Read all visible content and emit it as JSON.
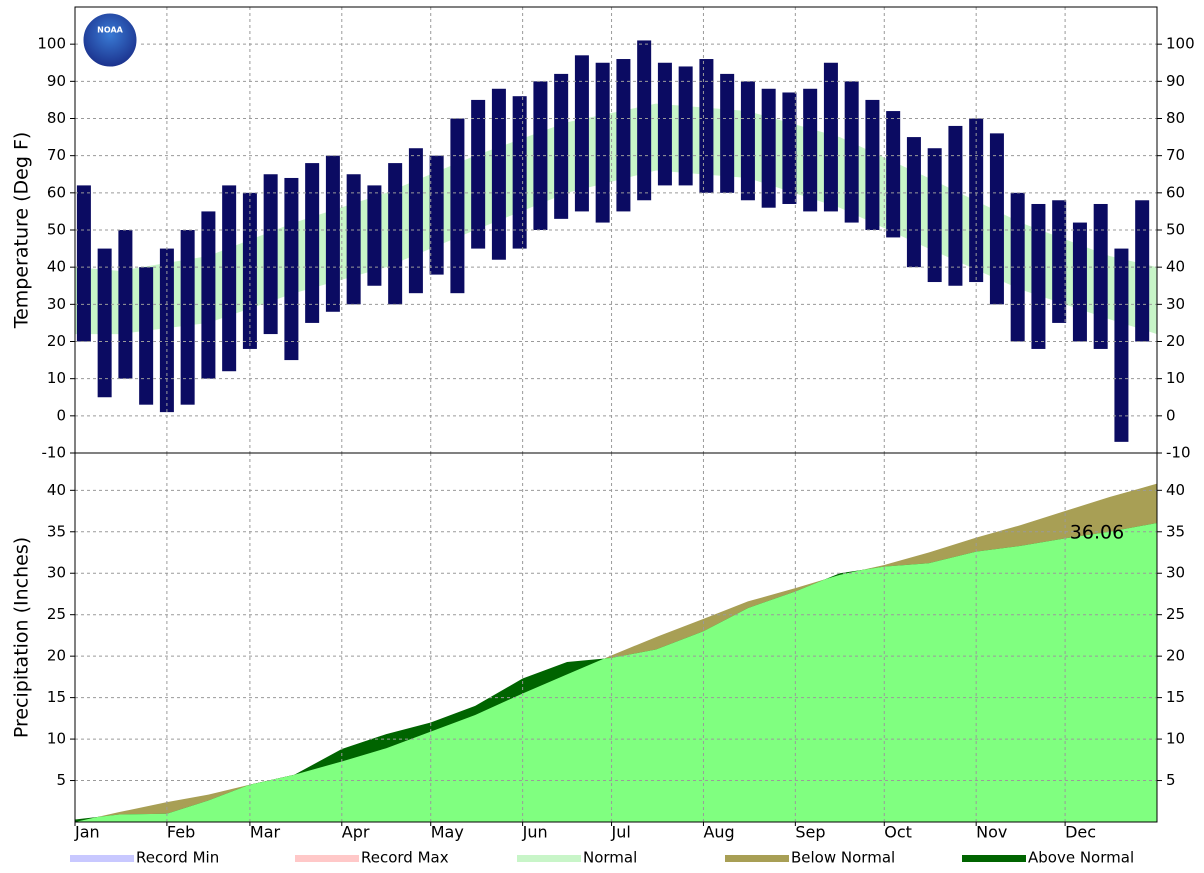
{
  "logo": "NOAA",
  "legend": [
    {
      "name": "Record Min",
      "color": "#c8c8ff"
    },
    {
      "name": "Record Max",
      "color": "#ffc8c8"
    },
    {
      "name": "Normal",
      "color": "#c8f5c8"
    },
    {
      "name": "Below Normal",
      "color": "#a89f55"
    },
    {
      "name": "Above Normal",
      "color": "#006400"
    }
  ],
  "chart_data": [
    {
      "type": "bar",
      "ylabel": "Temperature (Deg F)",
      "xlim": [
        0,
        365
      ],
      "xticks": [
        {
          "value": 0,
          "label": "Jan"
        },
        {
          "value": 31,
          "label": "Feb"
        },
        {
          "value": 59,
          "label": "Mar"
        },
        {
          "value": 90,
          "label": "Apr"
        },
        {
          "value": 120,
          "label": "May"
        },
        {
          "value": 151,
          "label": "Jun"
        },
        {
          "value": 181,
          "label": "Jul"
        },
        {
          "value": 212,
          "label": "Aug"
        },
        {
          "value": 243,
          "label": "Sep"
        },
        {
          "value": 273,
          "label": "Oct"
        },
        {
          "value": 304,
          "label": "Nov"
        },
        {
          "value": 334,
          "label": "Dec"
        }
      ],
      "ylim": [
        -10,
        110
      ],
      "yticks": [
        -10,
        0,
        10,
        20,
        30,
        40,
        50,
        60,
        70,
        80,
        90,
        100
      ],
      "grid": true,
      "color": "#0b0b62",
      "x": [
        3,
        10,
        17,
        24,
        31,
        38,
        45,
        52,
        59,
        66,
        73,
        80,
        87,
        94,
        101,
        108,
        115,
        122,
        129,
        136,
        143,
        150,
        157,
        164,
        171,
        178,
        185,
        192,
        199,
        206,
        213,
        220,
        227,
        234,
        241,
        248,
        255,
        262,
        269,
        276,
        283,
        290,
        297,
        304,
        311,
        318,
        325,
        332,
        339,
        346,
        353,
        360
      ],
      "low": [
        20,
        5,
        10,
        3,
        1,
        3,
        10,
        12,
        18,
        22,
        15,
        25,
        28,
        30,
        35,
        30,
        33,
        38,
        33,
        45,
        42,
        45,
        50,
        53,
        55,
        52,
        55,
        58,
        62,
        62,
        60,
        60,
        58,
        56,
        57,
        55,
        55,
        52,
        50,
        48,
        40,
        36,
        35,
        36,
        30,
        20,
        18,
        25,
        20,
        18,
        -7,
        20
      ],
      "high": [
        62,
        45,
        50,
        40,
        45,
        50,
        55,
        62,
        60,
        65,
        64,
        68,
        70,
        65,
        62,
        68,
        72,
        70,
        80,
        85,
        88,
        86,
        90,
        92,
        97,
        95,
        96,
        101,
        95,
        94,
        96,
        92,
        90,
        88,
        87,
        88,
        95,
        90,
        85,
        82,
        75,
        72,
        78,
        80,
        76,
        60,
        57,
        58,
        52,
        57,
        45,
        58
      ],
      "normal": {
        "color": "#c8f5c8",
        "x": [
          0,
          15,
          45,
          74,
          105,
          135,
          166,
          196,
          227,
          258,
          288,
          319,
          349,
          365
        ],
        "low": [
          22,
          22,
          25,
          33,
          40,
          50,
          60,
          66,
          64,
          56,
          45,
          34,
          26,
          22
        ],
        "high": [
          40,
          39,
          43,
          52,
          60,
          70,
          79,
          84,
          82,
          75,
          64,
          52,
          43,
          40
        ]
      }
    },
    {
      "type": "area",
      "ylabel": "Precipitation (Inches)",
      "xlim": [
        0,
        365
      ],
      "xticks": [
        {
          "value": 0,
          "label": "Jan"
        },
        {
          "value": 31,
          "label": "Feb"
        },
        {
          "value": 59,
          "label": "Mar"
        },
        {
          "value": 90,
          "label": "Apr"
        },
        {
          "value": 120,
          "label": "May"
        },
        {
          "value": 151,
          "label": "Jun"
        },
        {
          "value": 181,
          "label": "Jul"
        },
        {
          "value": 212,
          "label": "Aug"
        },
        {
          "value": 243,
          "label": "Sep"
        },
        {
          "value": 273,
          "label": "Oct"
        },
        {
          "value": 304,
          "label": "Nov"
        },
        {
          "value": 334,
          "label": "Dec"
        }
      ],
      "ylim": [
        0,
        44.5
      ],
      "yticks": [
        5,
        10,
        15,
        20,
        25,
        30,
        35,
        40
      ],
      "grid": true,
      "colors": {
        "actual": "#80ff80",
        "below": "#a89f55",
        "above": "#006400"
      },
      "x": [
        0,
        15,
        31,
        45,
        59,
        74,
        90,
        105,
        120,
        135,
        151,
        166,
        181,
        196,
        212,
        227,
        243,
        258,
        273,
        288,
        304,
        319,
        334,
        349,
        365
      ],
      "normal": [
        0,
        1.2,
        2.4,
        3.3,
        4.5,
        5.7,
        7.3,
        8.9,
        10.9,
        12.9,
        15.5,
        17.8,
        20.1,
        22.3,
        24.5,
        26.6,
        28.2,
        29.8,
        31.0,
        32.5,
        34.3,
        35.8,
        37.5,
        39.2,
        40.8
      ],
      "actual": [
        0.3,
        0.9,
        1.0,
        2.6,
        4.5,
        5.7,
        8.8,
        10.6,
        12.0,
        14.0,
        17.3,
        19.3,
        19.8,
        20.8,
        23.0,
        25.8,
        27.8,
        30.0,
        30.8,
        31.2,
        32.6,
        33.3,
        34.2,
        35.0,
        36.06
      ]
    }
  ]
}
